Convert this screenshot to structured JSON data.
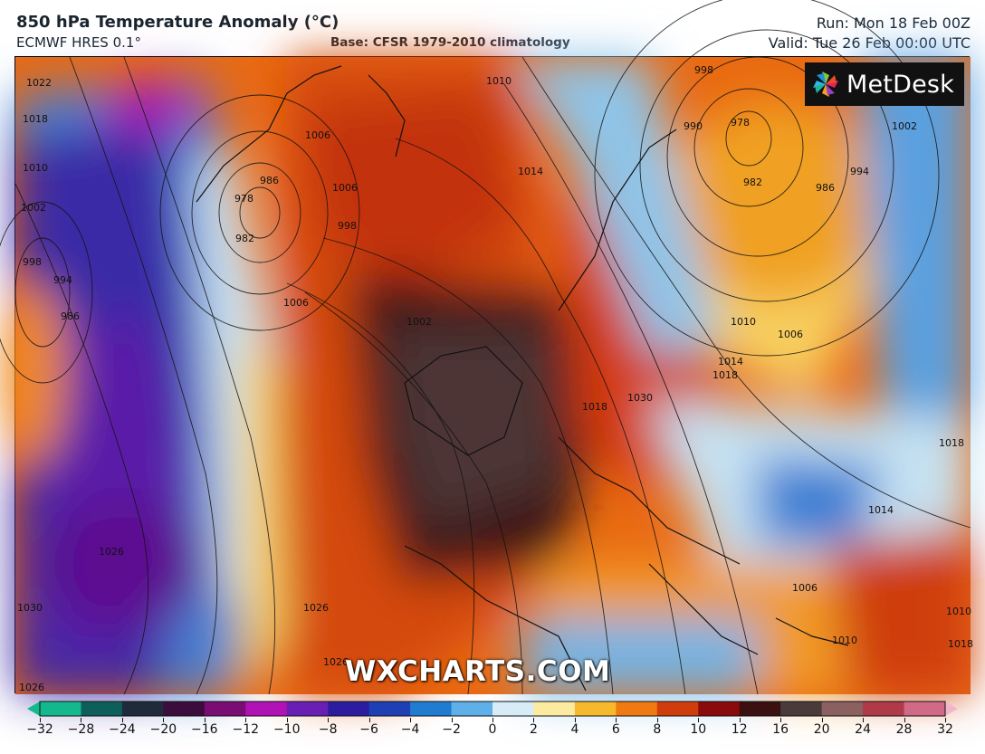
{
  "header": {
    "title": "850 hPa Temperature Anomaly (°C)",
    "model": "ECMWF HRES 0.1°",
    "base": "Base: CFSR 1979-2010 climatology",
    "run": "Run: Mon 18 Feb 00Z",
    "valid": "Valid: Tue 26 Feb 00:00 UTC"
  },
  "logo": {
    "text": "MetDesk"
  },
  "watermark": "WXCHARTS.COM",
  "map": {
    "isobar_labels": [
      "1022",
      "1018",
      "1010",
      "1002",
      "994",
      "986",
      "998",
      "1014",
      "1010",
      "1006",
      "978",
      "982",
      "986",
      "1006",
      "998",
      "1006",
      "1002",
      "1018",
      "1014",
      "998",
      "990",
      "978",
      "982",
      "1002",
      "994",
      "986",
      "1010",
      "1006",
      "1018",
      "1030",
      "1018",
      "1014",
      "1026",
      "1026",
      "1026",
      "1030",
      "1026",
      "1010",
      "1010",
      "1006",
      "1018"
    ]
  },
  "legend": {
    "ticks": [
      "−32",
      "−28",
      "−24",
      "−20",
      "−16",
      "−12",
      "−10",
      "−8",
      "−6",
      "−4",
      "−2",
      "0",
      "2",
      "4",
      "6",
      "8",
      "10",
      "12",
      "16",
      "20",
      "24",
      "28",
      "32"
    ],
    "colors": [
      "#13b98c",
      "#0e5f5a",
      "#1f2b3a",
      "#3b0d3d",
      "#7a0d73",
      "#b012b5",
      "#6a1fb4",
      "#2c1da0",
      "#1f3fb4",
      "#1f7cd0",
      "#5fb0e8",
      "#d8ecf7",
      "#fbeaa0",
      "#f6b92c",
      "#ef7a12",
      "#cf3d0c",
      "#8a0b0b",
      "#3a1010",
      "#4a3a3a",
      "#8a6060",
      "#b03a48",
      "#d06a86",
      "#f2b6ca"
    ]
  }
}
